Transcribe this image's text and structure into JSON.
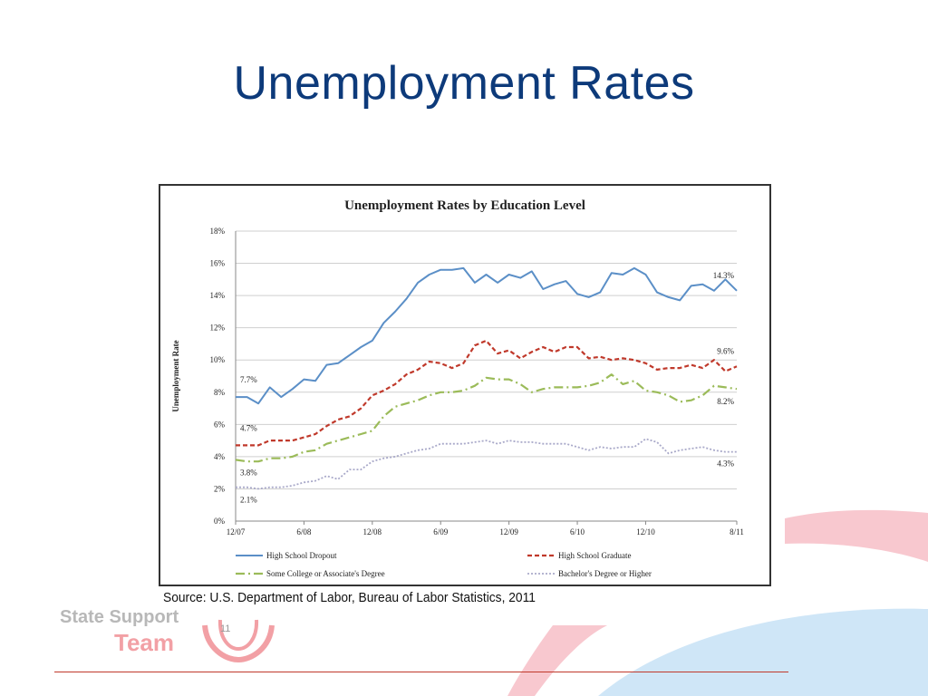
{
  "slide": {
    "title": "Unemployment Rates",
    "source": "Source: U.S. Department of Labor, Bureau of Labor Statistics, 2011",
    "page_number": "11",
    "logo": {
      "line1": "State Support",
      "line2": "Team"
    }
  },
  "colors": {
    "title": "#0d3a7a",
    "dropout": "#5b8fc7",
    "graduate": "#c0392b",
    "some_college": "#9bbb59",
    "bachelor": "#a9a9c9",
    "deco_pink": "#f8c8cf",
    "deco_blue": "#cfe6f7"
  },
  "chart_data": {
    "type": "line",
    "title": "Unemployment Rates by Education Level",
    "ylabel": "Unemployment Rate",
    "xlabel": "",
    "ylim": [
      0,
      18
    ],
    "y_ticks": [
      "0%",
      "2%",
      "4%",
      "6%",
      "8%",
      "10%",
      "12%",
      "14%",
      "16%",
      "18%"
    ],
    "x_tick_labels": [
      "12/07",
      "6/08",
      "12/08",
      "6/09",
      "12/09",
      "6/10",
      "12/10",
      "8/11"
    ],
    "x_tick_positions": [
      0,
      6,
      12,
      18,
      24,
      30,
      36,
      44
    ],
    "grid": true,
    "legend_position": "bottom",
    "series": [
      {
        "name": "High School Dropout",
        "style": "solid",
        "values": [
          7.7,
          7.7,
          7.3,
          8.3,
          7.7,
          8.2,
          8.8,
          8.7,
          9.7,
          9.8,
          10.3,
          10.8,
          11.2,
          12.3,
          13.0,
          13.8,
          14.8,
          15.3,
          15.6,
          15.6,
          15.7,
          14.8,
          15.3,
          14.8,
          15.3,
          15.1,
          15.5,
          14.4,
          14.7,
          14.9,
          14.1,
          13.9,
          14.2,
          15.4,
          15.3,
          15.7,
          15.3,
          14.2,
          13.9,
          13.7,
          14.6,
          14.7,
          14.3,
          15.0,
          14.3
        ],
        "start_label": "7.7%",
        "end_label": "14.3%"
      },
      {
        "name": "High School Graduate",
        "style": "dashed",
        "values": [
          4.7,
          4.7,
          4.7,
          5.0,
          5.0,
          5.0,
          5.2,
          5.4,
          5.9,
          6.3,
          6.5,
          7.0,
          7.8,
          8.1,
          8.5,
          9.1,
          9.4,
          9.9,
          9.8,
          9.5,
          9.8,
          10.9,
          11.2,
          10.4,
          10.6,
          10.1,
          10.5,
          10.8,
          10.5,
          10.8,
          10.8,
          10.1,
          10.2,
          10.0,
          10.1,
          10.0,
          9.8,
          9.4,
          9.5,
          9.5,
          9.7,
          9.5,
          10.0,
          9.3,
          9.6
        ],
        "start_label": "4.7%",
        "end_label": "9.6%"
      },
      {
        "name": "Some College or Associate's Degree",
        "style": "dashdot",
        "values": [
          3.8,
          3.7,
          3.7,
          3.9,
          3.9,
          4.0,
          4.3,
          4.4,
          4.8,
          5.0,
          5.2,
          5.4,
          5.6,
          6.5,
          7.1,
          7.3,
          7.5,
          7.8,
          8.0,
          8.0,
          8.1,
          8.4,
          8.9,
          8.8,
          8.8,
          8.5,
          8.0,
          8.2,
          8.3,
          8.3,
          8.3,
          8.4,
          8.6,
          9.1,
          8.5,
          8.7,
          8.1,
          8.0,
          7.8,
          7.4,
          7.5,
          7.8,
          8.4,
          8.3,
          8.2
        ],
        "start_label": "3.8%",
        "end_label": "8.2%"
      },
      {
        "name": "Bachelor's Degree or Higher",
        "style": "dotted",
        "values": [
          2.1,
          2.1,
          2.0,
          2.1,
          2.1,
          2.2,
          2.4,
          2.5,
          2.8,
          2.6,
          3.2,
          3.2,
          3.7,
          3.9,
          4.0,
          4.2,
          4.4,
          4.5,
          4.8,
          4.8,
          4.8,
          4.9,
          5.0,
          4.8,
          5.0,
          4.9,
          4.9,
          4.8,
          4.8,
          4.8,
          4.6,
          4.4,
          4.6,
          4.5,
          4.6,
          4.6,
          5.1,
          4.9,
          4.2,
          4.4,
          4.5,
          4.6,
          4.4,
          4.3,
          4.3
        ],
        "start_label": "2.1%",
        "end_label": "4.3%"
      }
    ]
  }
}
